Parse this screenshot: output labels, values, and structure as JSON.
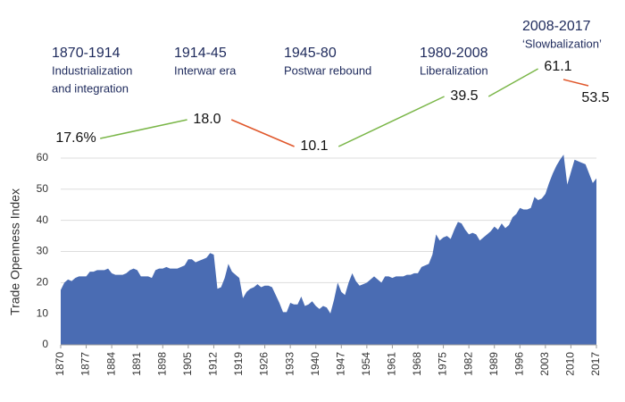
{
  "chart_data": {
    "type": "area",
    "y_label": "Trade Openness Index",
    "color": "#4a6cb3",
    "xlim": [
      1870,
      2017
    ],
    "xticks": [
      1870,
      1877,
      1884,
      1891,
      1898,
      1905,
      1912,
      1919,
      1926,
      1933,
      1940,
      1947,
      1954,
      1961,
      1968,
      1975,
      1982,
      1989,
      1996,
      2003,
      2010,
      2017
    ],
    "ylim": [
      0,
      62
    ],
    "yticks": [
      0,
      10,
      20,
      30,
      40,
      50,
      60
    ],
    "grid": true,
    "x": [
      1870,
      1871,
      1872,
      1873,
      1874,
      1875,
      1876,
      1877,
      1878,
      1879,
      1880,
      1881,
      1882,
      1883,
      1884,
      1885,
      1886,
      1887,
      1888,
      1889,
      1890,
      1891,
      1892,
      1893,
      1894,
      1895,
      1896,
      1897,
      1898,
      1899,
      1900,
      1901,
      1902,
      1903,
      1904,
      1905,
      1906,
      1907,
      1908,
      1909,
      1910,
      1911,
      1912,
      1913,
      1914,
      1915,
      1916,
      1917,
      1918,
      1919,
      1920,
      1921,
      1922,
      1923,
      1924,
      1925,
      1926,
      1927,
      1928,
      1929,
      1930,
      1931,
      1932,
      1933,
      1934,
      1935,
      1936,
      1937,
      1938,
      1939,
      1940,
      1941,
      1942,
      1943,
      1944,
      1945,
      1946,
      1947,
      1948,
      1949,
      1950,
      1951,
      1952,
      1953,
      1954,
      1955,
      1956,
      1957,
      1958,
      1959,
      1960,
      1961,
      1962,
      1963,
      1964,
      1965,
      1966,
      1967,
      1968,
      1969,
      1970,
      1971,
      1972,
      1973,
      1974,
      1975,
      1976,
      1977,
      1978,
      1979,
      1980,
      1981,
      1982,
      1983,
      1984,
      1985,
      1986,
      1987,
      1988,
      1989,
      1990,
      1991,
      1992,
      1993,
      1994,
      1995,
      1996,
      1997,
      1998,
      1999,
      2000,
      2001,
      2002,
      2003,
      2004,
      2005,
      2006,
      2007,
      2008,
      2009,
      2010,
      2011,
      2012,
      2013,
      2014,
      2015,
      2016,
      2017
    ],
    "values": [
      17.6,
      20,
      21,
      20.5,
      21.5,
      22,
      22,
      22,
      23.5,
      23.5,
      24,
      24,
      24,
      24.5,
      23,
      22.5,
      22.5,
      22.5,
      23,
      24,
      24.5,
      24,
      22,
      22,
      22,
      21.5,
      24,
      24.5,
      24.5,
      25,
      24.5,
      24.5,
      24.5,
      25,
      25.5,
      27.5,
      27.5,
      26.5,
      27,
      27.5,
      28,
      29.5,
      29,
      18,
      18.5,
      21.5,
      26,
      23.5,
      22.5,
      21.5,
      15,
      17,
      18,
      18.5,
      19.5,
      18.5,
      19,
      19,
      18.5,
      16,
      13.5,
      10.5,
      10.5,
      13.5,
      13,
      13,
      15.5,
      12.5,
      13,
      14,
      12.5,
      11.5,
      12.5,
      12,
      10.1,
      14.5,
      20,
      17,
      16,
      20,
      23,
      20.5,
      19,
      19.5,
      20,
      21,
      22,
      21,
      20,
      22,
      22,
      21.5,
      22,
      22,
      22,
      22.5,
      22.5,
      23,
      23,
      25,
      25.5,
      26,
      29,
      35.5,
      33.5,
      34.5,
      35,
      34,
      37,
      39.5,
      39,
      37,
      35.5,
      36,
      35.5,
      33.5,
      34.5,
      35.5,
      36.5,
      38,
      37,
      39,
      37.5,
      38.5,
      41,
      42,
      44,
      43.5,
      43.5,
      44,
      47.5,
      46.5,
      47,
      48.5,
      52,
      55,
      57.5,
      59.5,
      61.1,
      51.5,
      55.5,
      59.5,
      59,
      58.5,
      58,
      55,
      52,
      53.5
    ],
    "eras": [
      {
        "period": "1870-1914",
        "description": [
          "Industrialization",
          "and integration"
        ]
      },
      {
        "period": "1914-45",
        "description": [
          "Interwar era"
        ]
      },
      {
        "period": "1945-80",
        "description": [
          "Postwar rebound"
        ]
      },
      {
        "period": "1980-2008",
        "description": [
          "Liberalization"
        ]
      },
      {
        "period": "2008-2017",
        "description": [
          "‘Slowbalization’"
        ]
      }
    ],
    "milestones": {
      "values": [
        17.6,
        18.0,
        10.1,
        39.5,
        61.1,
        53.5
      ],
      "value_labels": [
        "17.6%",
        "18.0",
        "10.1",
        "39.5",
        "61.1",
        "53.5"
      ]
    },
    "rise_color": "#7ab648",
    "fall_color": "#e0572b"
  }
}
